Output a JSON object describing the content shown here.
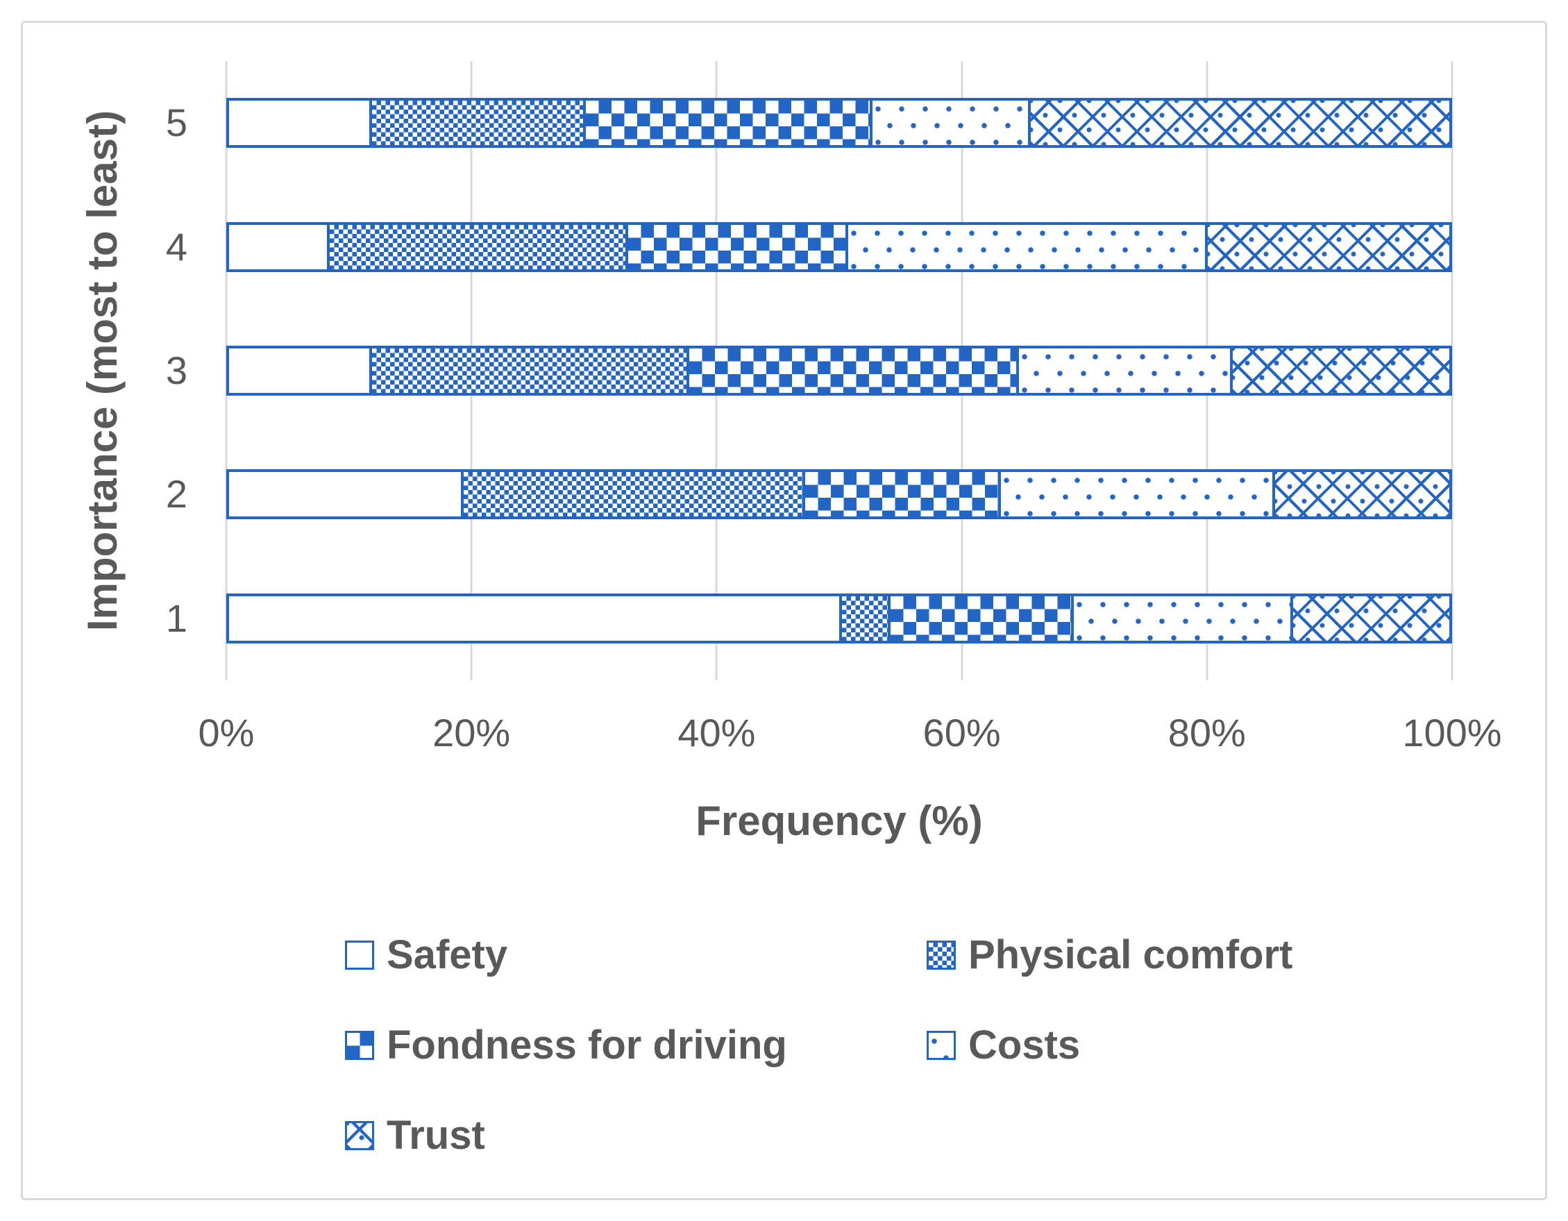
{
  "chart_data": {
    "type": "bar",
    "orientation": "horizontal-stacked",
    "title": "",
    "xlabel": "Frequency (%)",
    "ylabel": "Importance (most to least)",
    "categories": [
      "5",
      "4",
      "3",
      "2",
      "1"
    ],
    "x_ticks": [
      "0%",
      "20%",
      "40%",
      "60%",
      "80%",
      "100%"
    ],
    "xlim": [
      0,
      100
    ],
    "grid": "vertical-major",
    "legend_position": "bottom",
    "series": [
      {
        "name": "Safety",
        "pattern": "solid-white",
        "values": [
          11.5,
          8,
          11.5,
          19,
          50
        ]
      },
      {
        "name": "Physical comfort",
        "pattern": "fine-dot-grid",
        "values": [
          17.5,
          24.5,
          26,
          28,
          4
        ]
      },
      {
        "name": "Fondness for driving",
        "pattern": "checkerboard",
        "values": [
          23.5,
          18,
          27,
          16,
          15
        ]
      },
      {
        "name": "Costs",
        "pattern": "sparse-dots",
        "values": [
          13,
          29.5,
          17.5,
          22.5,
          18
        ]
      },
      {
        "name": "Trust",
        "pattern": "diagonal-crosshatch",
        "values": [
          34.5,
          20,
          18,
          14.5,
          13
        ]
      }
    ],
    "colors": {
      "accent": "#2265C5",
      "gridline": "#D8D8D8",
      "frame": "#D9D9D9",
      "text": "#595959"
    }
  }
}
